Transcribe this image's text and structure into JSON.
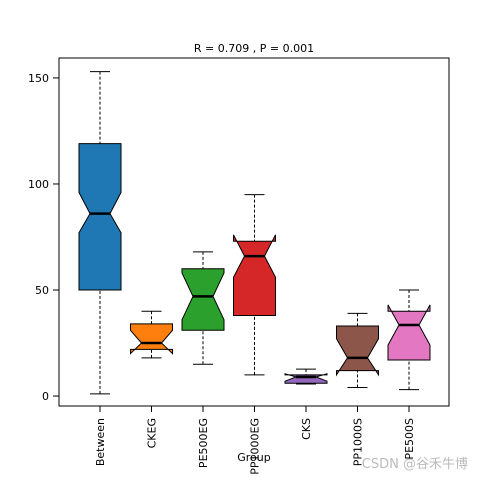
{
  "chart_data": {
    "type": "box",
    "title": "R = 0.709 , P = 0.001",
    "x_label": "Group",
    "categories": [
      "Between",
      "CKEG",
      "PE500EG",
      "PP1000EG",
      "CKS",
      "PP1000S",
      "PE500S"
    ],
    "colors": [
      "#1f77b4",
      "#ff7f0e",
      "#2ca02c",
      "#d62728",
      "#9467bd",
      "#8c564b",
      "#e377c2"
    ],
    "min": [
      1,
      18,
      15,
      10,
      5.7,
      4,
      3
    ],
    "q1": [
      50,
      22,
      31,
      38,
      6,
      12,
      17
    ],
    "median": [
      86,
      25,
      47,
      66,
      9,
      18,
      33.5
    ],
    "q3": [
      119,
      34,
      60,
      73,
      10,
      33,
      40
    ],
    "max": [
      153,
      40,
      68,
      95,
      12.7,
      39,
      50
    ],
    "notch_low": [
      77,
      20,
      36,
      56,
      7,
      10,
      24
    ],
    "notch_high": [
      96,
      31,
      58,
      76,
      10.5,
      27,
      43
    ],
    "ylim": [
      -4.7,
      159.4
    ],
    "yticks": [
      0,
      50,
      100,
      150
    ],
    "watermark": "CSDN @谷禾牛博"
  }
}
